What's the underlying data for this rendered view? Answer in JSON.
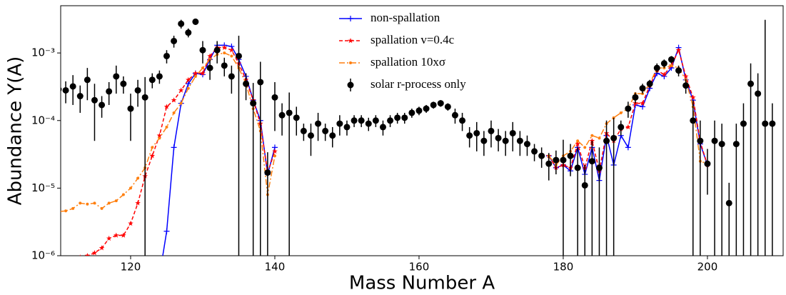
{
  "chart_data": {
    "type": "line",
    "x_label": "Mass Number A",
    "y_label": "Abundance Y(A)",
    "xlim": [
      110.3,
      210.5
    ],
    "ylim": [
      1e-06,
      0.005
    ],
    "log_y": true,
    "legend": "upper center",
    "xticks": [
      120,
      140,
      160,
      180,
      200
    ],
    "yticks": [
      {
        "value": 1e-06,
        "label": "10⁻⁶"
      },
      {
        "value": 1e-05,
        "label": "10⁻⁵"
      },
      {
        "value": 0.0001,
        "label": "10⁻⁴"
      },
      {
        "value": 0.001,
        "label": "10⁻³"
      }
    ],
    "series": [
      {
        "name": "non-spallation",
        "color": "#0000ff",
        "marker": "plus",
        "x": [
          124,
          125,
          126,
          127,
          128,
          129,
          130,
          131,
          132,
          133,
          134,
          135,
          136,
          137,
          138,
          139,
          140,
          160,
          178,
          179,
          180,
          181,
          182,
          183,
          184,
          185,
          186,
          187,
          188,
          189,
          190,
          191,
          192,
          193,
          194,
          195,
          196,
          197,
          198,
          199,
          200
        ],
        "values": [
          5e-07,
          2.3e-06,
          4e-05,
          0.00018,
          0.00035,
          0.0005,
          0.00048,
          0.0008,
          0.0013,
          0.0013,
          0.00125,
          0.0008,
          0.00045,
          0.0002,
          0.0001,
          1.6e-05,
          4e-05,
          null,
          3e-05,
          2e-05,
          2.2e-05,
          1.8e-05,
          4e-05,
          1.6e-05,
          4e-05,
          1.3e-05,
          6e-05,
          2.2e-05,
          6e-05,
          4e-05,
          0.00017,
          0.00016,
          0.0003,
          0.0005,
          0.00045,
          0.0006,
          0.0012,
          0.0004,
          0.0002,
          4.5e-05,
          2.2e-05
        ]
      },
      {
        "name": "spallation v=0.4c",
        "color": "#ff0000",
        "marker": "star",
        "dash": "5,3",
        "x": [
          110,
          111,
          112,
          113,
          114,
          115,
          116,
          117,
          118,
          119,
          120,
          121,
          122,
          123,
          124,
          125,
          126,
          127,
          128,
          129,
          130,
          131,
          132,
          133,
          134,
          135,
          136,
          137,
          138,
          139,
          140,
          160,
          178,
          179,
          180,
          181,
          182,
          183,
          184,
          185,
          186,
          187,
          188,
          189,
          190,
          191,
          192,
          193,
          194,
          195,
          196,
          197,
          198,
          199,
          200
        ],
        "values": [
          8e-07,
          8e-07,
          9e-07,
          9.5e-07,
          1e-06,
          1.1e-06,
          1.3e-06,
          1.8e-06,
          2e-06,
          2e-06,
          3e-06,
          6e-06,
          1.5e-05,
          3e-05,
          6e-05,
          0.00016,
          0.0002,
          0.00028,
          0.0004,
          0.0005,
          0.0005,
          0.0009,
          0.0012,
          0.0012,
          0.0011,
          0.0007,
          0.0004,
          0.0002,
          9e-05,
          1.7e-05,
          3.5e-05,
          null,
          3e-05,
          2e-05,
          2.2e-05,
          2e-05,
          4.5e-05,
          2e-05,
          5e-05,
          1.8e-05,
          6.5e-05,
          5e-05,
          7.5e-05,
          8e-05,
          0.00018,
          0.00018,
          0.00033,
          0.00055,
          0.00048,
          0.00065,
          0.0011,
          0.00045,
          0.00022,
          4.8e-05,
          2.2e-05
        ]
      },
      {
        "name": "spallation 10xσ",
        "color": "#ff7f0e",
        "marker": "dot",
        "dash": "8,3,2,3",
        "x": [
          110,
          111,
          112,
          113,
          114,
          115,
          116,
          117,
          118,
          119,
          120,
          121,
          122,
          123,
          124,
          125,
          126,
          127,
          128,
          129,
          130,
          131,
          132,
          133,
          134,
          135,
          136,
          137,
          138,
          139,
          140,
          160,
          178,
          179,
          180,
          181,
          182,
          183,
          184,
          185,
          186,
          187,
          188,
          189,
          190,
          191,
          192,
          193,
          194,
          195,
          196,
          197,
          198,
          199,
          200
        ],
        "values": [
          4.5e-06,
          4.6e-06,
          5e-06,
          6e-06,
          5.8e-06,
          6e-06,
          5e-06,
          6e-06,
          6.5e-06,
          8e-06,
          1e-05,
          1.4e-05,
          2e-05,
          4e-05,
          5.5e-05,
          8e-05,
          0.00013,
          0.00018,
          0.0003,
          0.00045,
          0.0006,
          0.0008,
          0.00095,
          0.001,
          0.0009,
          0.0006,
          0.00035,
          0.00015,
          7e-05,
          8e-06,
          3e-05,
          null,
          3e-05,
          2.2e-05,
          3e-05,
          3.5e-05,
          5e-05,
          4e-05,
          6e-05,
          5.5e-05,
          9e-05,
          0.00011,
          0.00013,
          0.00015,
          0.00025,
          0.00025,
          0.00035,
          0.0006,
          0.0006,
          0.00065,
          0.0006,
          0.0004,
          0.00016,
          2.5e-05,
          2.3e-05
        ]
      },
      {
        "name": "solar r-process only",
        "color": "#000000",
        "marker": "errorbar",
        "x": [
          110,
          111,
          112,
          113,
          114,
          115,
          116,
          117,
          118,
          119,
          120,
          121,
          122,
          123,
          124,
          125,
          126,
          127,
          128,
          129,
          130,
          131,
          132,
          133,
          134,
          135,
          136,
          137,
          138,
          139,
          140,
          141,
          142,
          143,
          144,
          145,
          146,
          147,
          148,
          149,
          150,
          151,
          152,
          153,
          154,
          155,
          156,
          157,
          158,
          159,
          160,
          161,
          162,
          163,
          164,
          165,
          166,
          167,
          168,
          169,
          170,
          171,
          172,
          173,
          174,
          175,
          176,
          177,
          178,
          179,
          180,
          181,
          182,
          183,
          184,
          185,
          186,
          187,
          188,
          189,
          190,
          191,
          192,
          193,
          194,
          195,
          196,
          197,
          198,
          199,
          200,
          201,
          202,
          203,
          204,
          205,
          206,
          207,
          208,
          209
        ],
        "values": [
          0.00029,
          0.00028,
          0.00032,
          0.00023,
          0.0004,
          0.0002,
          0.00017,
          0.00027,
          0.00045,
          0.00035,
          0.00015,
          0.00028,
          0.00022,
          0.0004,
          0.00045,
          0.0009,
          0.0015,
          0.0027,
          0.002,
          0.0029,
          0.0011,
          0.0006,
          0.0011,
          0.00065,
          0.00045,
          0.0009,
          0.00035,
          0.00018,
          0.00037,
          1.7e-05,
          0.00022,
          0.00012,
          0.00013,
          0.00011,
          7e-05,
          6e-05,
          9e-05,
          7e-05,
          6e-05,
          9e-05,
          8e-05,
          0.0001,
          0.0001,
          9e-05,
          0.0001,
          8e-05,
          0.0001,
          0.00011,
          0.00011,
          0.00013,
          0.00014,
          0.00015,
          0.00017,
          0.00018,
          0.00016,
          0.00012,
          0.0001,
          6e-05,
          6.5e-05,
          5e-05,
          7e-05,
          5.5e-05,
          5e-05,
          6.5e-05,
          5e-05,
          4.5e-05,
          3.5e-05,
          3e-05,
          2.3e-05,
          2.6e-05,
          2.6e-05,
          3e-05,
          2e-05,
          1.1e-05,
          2.5e-05,
          2e-05,
          5e-05,
          5.5e-05,
          8e-05,
          0.00015,
          0.00022,
          0.0003,
          0.00035,
          0.0006,
          0.0007,
          0.0008,
          0.00055,
          0.00033,
          0.0001,
          5e-05,
          2.3e-05,
          5e-05,
          4.5e-05,
          6e-06,
          4.5e-05,
          9e-05,
          0.00035,
          0.00025,
          9e-05,
          9e-05
        ],
        "errors": [
          0.0001,
          0.0001,
          0.00015,
          0.0001,
          0.0002,
          0.00015,
          6e-05,
          0.0001,
          0.0002,
          0.0001,
          0.0001,
          0.00012,
          0.00022,
          0.0001,
          0.0001,
          0.0002,
          0.0003,
          0.0004,
          0.0003,
          0.0003,
          0.0004,
          0.0002,
          0.0004,
          0.0002,
          0.0002,
          0.0009,
          0.00015,
          0.00018,
          0.00037,
          1.7e-05,
          0.00015,
          6e-05,
          0.00013,
          5e-05,
          2e-05,
          3e-05,
          4e-05,
          2e-05,
          2e-05,
          3e-05,
          2e-05,
          2e-05,
          2e-05,
          2e-05,
          2e-05,
          2e-05,
          2e-05,
          2e-05,
          2e-05,
          2e-05,
          2e-05,
          2e-05,
          2e-05,
          2e-05,
          2e-05,
          3e-05,
          3e-05,
          2e-05,
          3e-05,
          2e-05,
          3e-05,
          2e-05,
          2e-05,
          3e-05,
          2e-05,
          1.5e-05,
          1e-05,
          1e-05,
          1e-05,
          1e-05,
          2.6e-05,
          1.5e-05,
          2e-05,
          1.1e-05,
          2.5e-05,
          2e-05,
          5e-05,
          5.5e-05,
          2e-05,
          4e-05,
          4e-05,
          5e-05,
          5e-05,
          0.0001,
          0.0001,
          0.0001,
          0.0001,
          8e-05,
          0.0001,
          5e-05,
          1.5e-05,
          5e-05,
          4.5e-05,
          6e-06,
          4.5e-05,
          9e-05,
          0.00035,
          0.00025,
          0.003,
          9e-05
        ]
      }
    ]
  }
}
